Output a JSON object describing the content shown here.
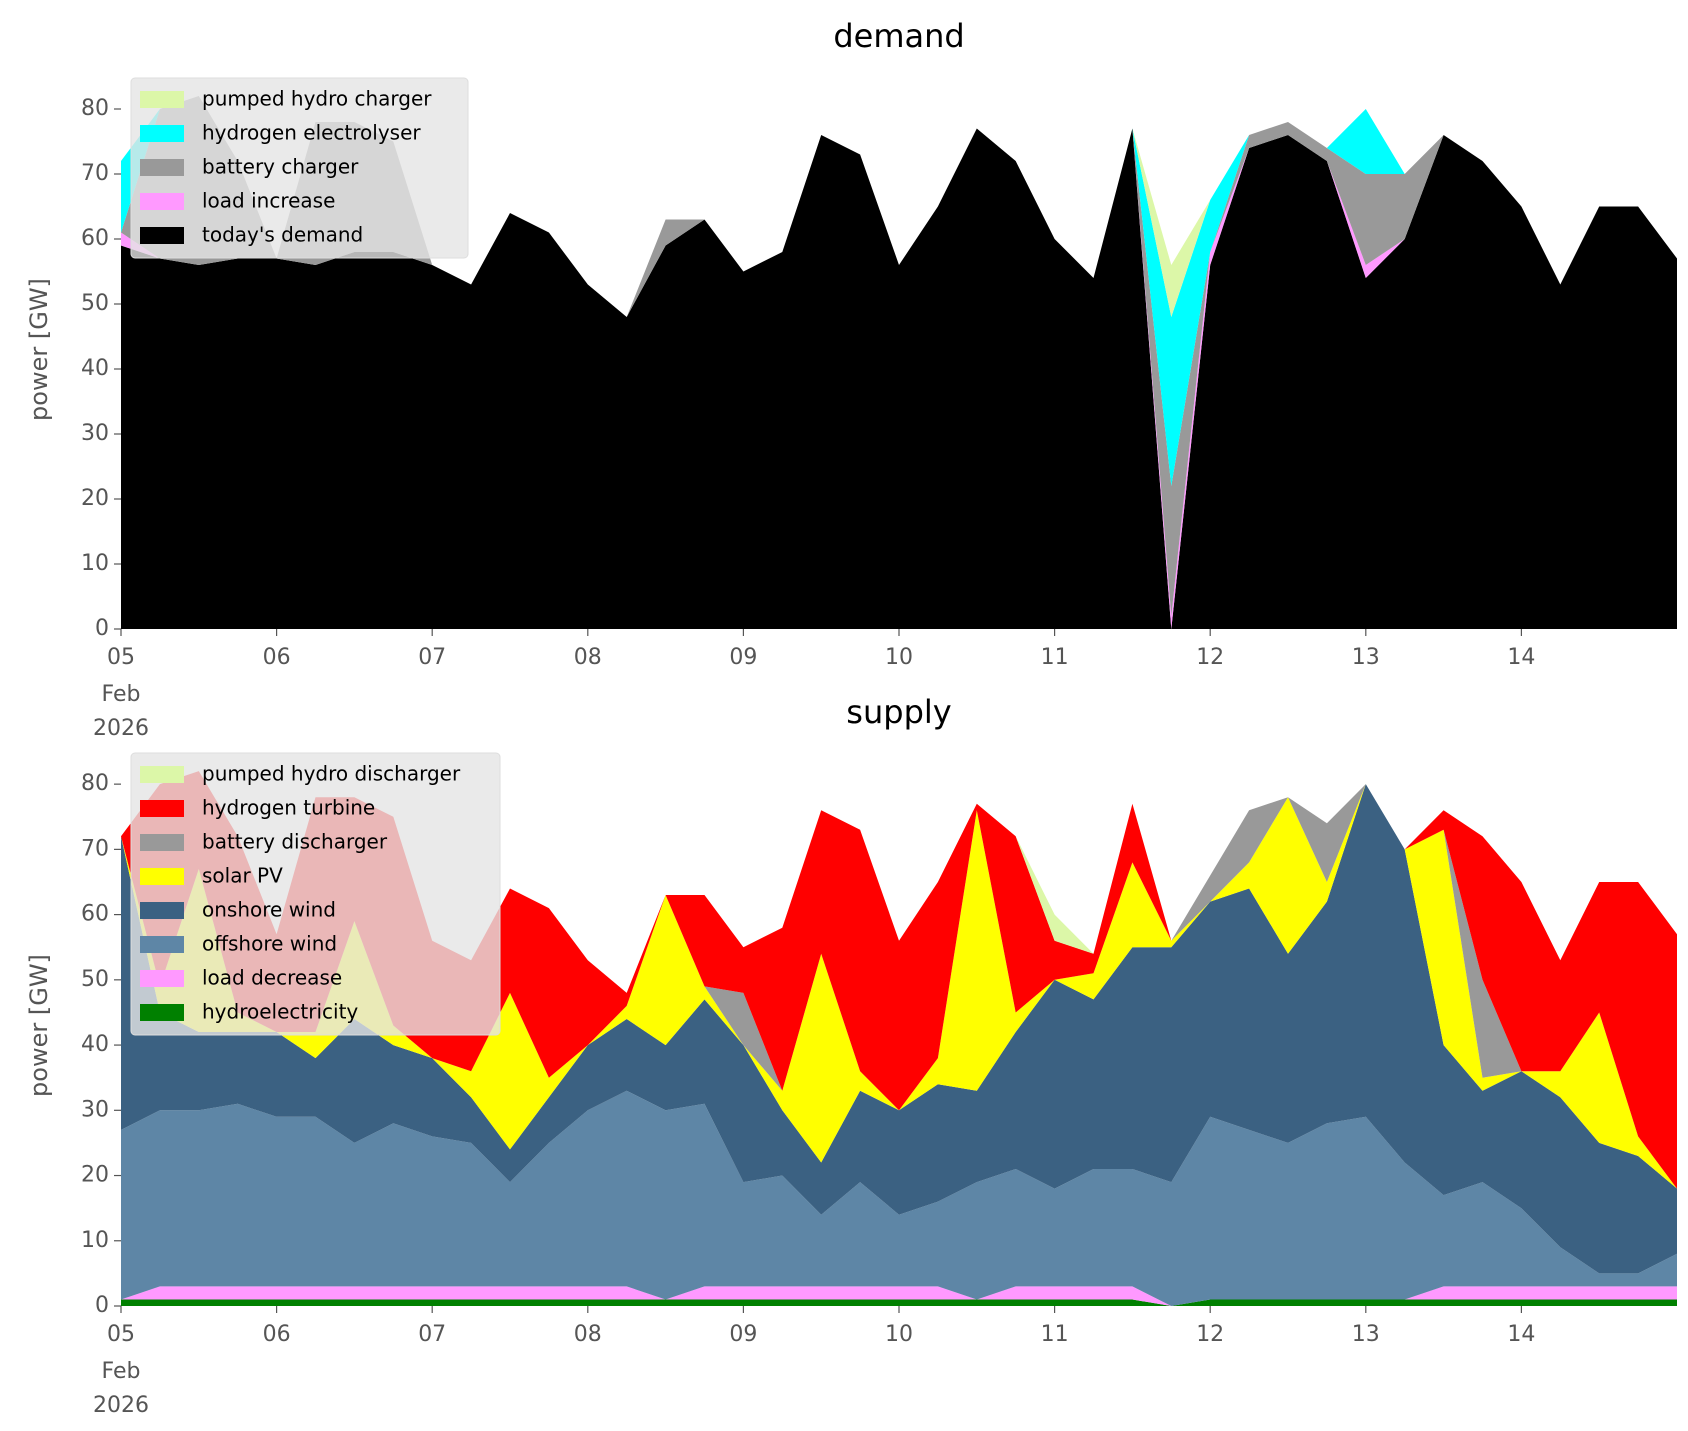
{
  "chart_data": [
    {
      "type": "stacked_area",
      "title": "demand",
      "ylabel": "power [GW]",
      "legend": "upper left",
      "x": [
        "2026-02-05T00:00",
        "2026-02-05T06:00",
        "2026-02-05T12:00",
        "2026-02-05T18:00",
        "2026-02-06T00:00",
        "2026-02-06T06:00",
        "2026-02-06T12:00",
        "2026-02-06T18:00",
        "2026-02-07T00:00",
        "2026-02-07T06:00",
        "2026-02-07T12:00",
        "2026-02-07T18:00",
        "2026-02-08T00:00",
        "2026-02-08T06:00",
        "2026-02-08T12:00",
        "2026-02-08T18:00",
        "2026-02-09T00:00",
        "2026-02-09T06:00",
        "2026-02-09T12:00",
        "2026-02-09T18:00",
        "2026-02-10T00:00",
        "2026-02-10T06:00",
        "2026-02-10T12:00",
        "2026-02-10T18:00",
        "2026-02-11T00:00",
        "2026-02-11T06:00",
        "2026-02-11T12:00",
        "2026-02-11T18:00",
        "2026-02-12T00:00",
        "2026-02-12T06:00",
        "2026-02-12T12:00",
        "2026-02-12T18:00",
        "2026-02-13T00:00",
        "2026-02-13T06:00",
        "2026-02-13T12:00",
        "2026-02-13T18:00",
        "2026-02-14T00:00",
        "2026-02-14T06:00",
        "2026-02-14T12:00",
        "2026-02-14T18:00",
        "2026-02-15T00:00"
      ],
      "xlim": [
        "2026-02-05T00:00",
        "2026-02-15T00:00"
      ],
      "xticks": [
        {
          "value": "2026-02-05T00:00",
          "label": "05"
        },
        {
          "value": "2026-02-06T00:00",
          "label": "06"
        },
        {
          "value": "2026-02-07T00:00",
          "label": "07"
        },
        {
          "value": "2026-02-08T00:00",
          "label": "08"
        },
        {
          "value": "2026-02-09T00:00",
          "label": "09"
        },
        {
          "value": "2026-02-10T00:00",
          "label": "10"
        },
        {
          "value": "2026-02-11T00:00",
          "label": "11"
        },
        {
          "value": "2026-02-12T00:00",
          "label": "12"
        },
        {
          "value": "2026-02-13T00:00",
          "label": "13"
        },
        {
          "value": "2026-02-14T00:00",
          "label": "14"
        }
      ],
      "xtick_sublabels": [
        "Feb",
        "2026"
      ],
      "ylim": [
        0,
        86
      ],
      "yticks": [
        0,
        10,
        20,
        30,
        40,
        50,
        60,
        70,
        80
      ],
      "series": [
        {
          "name": "pumped hydro charger",
          "color": "#dcf7a8",
          "values": [
            0,
            0,
            0,
            0,
            0,
            0,
            0,
            0,
            0,
            0,
            0,
            0,
            0,
            0,
            0,
            0,
            0,
            0,
            0,
            0,
            0,
            0,
            0,
            0,
            0,
            0,
            0,
            8,
            0,
            0,
            0,
            0,
            0,
            0,
            0,
            0,
            0,
            0,
            0,
            0,
            0
          ]
        },
        {
          "name": "hydrogen electrolyser",
          "color": "#00ffff",
          "values": [
            11,
            0,
            0,
            0,
            0,
            0,
            0,
            0,
            0,
            0,
            0,
            0,
            0,
            0,
            0,
            0,
            0,
            0,
            0,
            0,
            0,
            0,
            0,
            0,
            0,
            0,
            0,
            26,
            8,
            0,
            0,
            0,
            10,
            0,
            0,
            0,
            0,
            0,
            0,
            0,
            0
          ]
        },
        {
          "name": "battery charger",
          "color": "#999999",
          "values": [
            0,
            23,
            26,
            15,
            0,
            22,
            20,
            17,
            0,
            0,
            0,
            0,
            0,
            0,
            4,
            0,
            0,
            0,
            0,
            0,
            0,
            0,
            0,
            0,
            0,
            0,
            0,
            20,
            0,
            2,
            2,
            2,
            14,
            10,
            0,
            0,
            0,
            0,
            0,
            0,
            0
          ]
        },
        {
          "name": "load increase",
          "color": "#ff99ff",
          "values": [
            2,
            0,
            0,
            0,
            0,
            0,
            0,
            0,
            0,
            0,
            0,
            0,
            0,
            0,
            0,
            0,
            0,
            0,
            0,
            0,
            0,
            0,
            0,
            0,
            0,
            0,
            0,
            2,
            2,
            0,
            0,
            0,
            2,
            0,
            0,
            0,
            0,
            0,
            0,
            0,
            0
          ]
        },
        {
          "name": "today's demand",
          "color": "#000000",
          "values": [
            59,
            57,
            56,
            57,
            57,
            56,
            58,
            58,
            56,
            53,
            64,
            61,
            53,
            48,
            59,
            63,
            55,
            58,
            76,
            73,
            56,
            65,
            77,
            72,
            60,
            54,
            77,
            0,
            56,
            74,
            76,
            72,
            54,
            60,
            76,
            72,
            65,
            53,
            65,
            65,
            57
          ]
        }
      ]
    },
    {
      "type": "stacked_area",
      "title": "supply",
      "ylabel": "power [GW]",
      "legend": "upper left",
      "x": [
        "2026-02-05T00:00",
        "2026-02-05T06:00",
        "2026-02-05T12:00",
        "2026-02-05T18:00",
        "2026-02-06T00:00",
        "2026-02-06T06:00",
        "2026-02-06T12:00",
        "2026-02-06T18:00",
        "2026-02-07T00:00",
        "2026-02-07T06:00",
        "2026-02-07T12:00",
        "2026-02-07T18:00",
        "2026-02-08T00:00",
        "2026-02-08T06:00",
        "2026-02-08T12:00",
        "2026-02-08T18:00",
        "2026-02-09T00:00",
        "2026-02-09T06:00",
        "2026-02-09T12:00",
        "2026-02-09T18:00",
        "2026-02-10T00:00",
        "2026-02-10T06:00",
        "2026-02-10T12:00",
        "2026-02-10T18:00",
        "2026-02-11T00:00",
        "2026-02-11T06:00",
        "2026-02-11T12:00",
        "2026-02-11T18:00",
        "2026-02-12T00:00",
        "2026-02-12T06:00",
        "2026-02-12T12:00",
        "2026-02-12T18:00",
        "2026-02-13T00:00",
        "2026-02-13T06:00",
        "2026-02-13T12:00",
        "2026-02-13T18:00",
        "2026-02-14T00:00",
        "2026-02-14T06:00",
        "2026-02-14T12:00",
        "2026-02-14T18:00",
        "2026-02-15T00:00"
      ],
      "xlim": [
        "2026-02-05T00:00",
        "2026-02-15T00:00"
      ],
      "xticks": [
        {
          "value": "2026-02-05T00:00",
          "label": "05"
        },
        {
          "value": "2026-02-06T00:00",
          "label": "06"
        },
        {
          "value": "2026-02-07T00:00",
          "label": "07"
        },
        {
          "value": "2026-02-08T00:00",
          "label": "08"
        },
        {
          "value": "2026-02-09T00:00",
          "label": "09"
        },
        {
          "value": "2026-02-10T00:00",
          "label": "10"
        },
        {
          "value": "2026-02-11T00:00",
          "label": "11"
        },
        {
          "value": "2026-02-12T00:00",
          "label": "12"
        },
        {
          "value": "2026-02-13T00:00",
          "label": "13"
        },
        {
          "value": "2026-02-14T00:00",
          "label": "14"
        }
      ],
      "xtick_sublabels": [
        "Feb",
        "2026"
      ],
      "ylim": [
        0,
        86
      ],
      "yticks": [
        0,
        10,
        20,
        30,
        40,
        50,
        60,
        70,
        80
      ],
      "series": [
        {
          "name": "pumped hydro discharger",
          "color": "#dcf7a8",
          "values": [
            0,
            0,
            0,
            0,
            0,
            0,
            0,
            0,
            0,
            0,
            0,
            0,
            0,
            0,
            0,
            0,
            0,
            0,
            0,
            0,
            0,
            0,
            0,
            0,
            4,
            0,
            0,
            0,
            0,
            0,
            0,
            0,
            0,
            0,
            0,
            0,
            0,
            0,
            0,
            0,
            0
          ]
        },
        {
          "name": "hydrogen turbine",
          "color": "#ff0000",
          "values": [
            0,
            31,
            15,
            27,
            15,
            36,
            19,
            32,
            18,
            17,
            16,
            26,
            13,
            2,
            0,
            14,
            7,
            25,
            22,
            37,
            26,
            27,
            1,
            27,
            6,
            3,
            9,
            0,
            0,
            0,
            0,
            0,
            0,
            0,
            3,
            22,
            29,
            17,
            20,
            39,
            39
          ]
        },
        {
          "name": "battery discharger",
          "color": "#999999",
          "values": [
            0,
            0,
            0,
            0,
            0,
            0,
            0,
            0,
            0,
            0,
            0,
            0,
            0,
            0,
            0,
            0,
            8,
            0,
            0,
            0,
            0,
            0,
            0,
            0,
            0,
            0,
            0,
            0,
            4,
            8,
            0,
            9,
            0,
            0,
            0,
            15,
            0,
            0,
            0,
            0,
            0
          ]
        },
        {
          "name": "solar PV",
          "color": "#ffff00",
          "values": [
            0,
            4,
            25,
            3,
            0,
            4,
            15,
            3,
            0,
            4,
            24,
            3,
            0,
            2,
            23,
            2,
            0,
            3,
            32,
            3,
            0,
            4,
            43,
            3,
            0,
            4,
            13,
            1,
            0,
            4,
            24,
            3,
            0,
            0,
            33,
            2,
            0,
            4,
            20,
            3,
            0
          ]
        },
        {
          "name": "onshore wind",
          "color": "#3b6182",
          "values": [
            45,
            15,
            12,
            11,
            13,
            9,
            19,
            12,
            12,
            7,
            5,
            7,
            10,
            11,
            10,
            16,
            21,
            10,
            8,
            14,
            16,
            18,
            14,
            21,
            32,
            26,
            34,
            36,
            33,
            37,
            29,
            34,
            51,
            48,
            23,
            14,
            21,
            23,
            20,
            18,
            10
          ]
        },
        {
          "name": "offshore wind",
          "color": "#5e86a6",
          "values": [
            26,
            27,
            27,
            28,
            26,
            26,
            22,
            25,
            23,
            22,
            16,
            22,
            27,
            30,
            29,
            28,
            16,
            17,
            11,
            16,
            11,
            13,
            18,
            18,
            15,
            18,
            18,
            19,
            28,
            26,
            24,
            27,
            28,
            21,
            14,
            16,
            12,
            6,
            2,
            2,
            5
          ]
        },
        {
          "name": "load decrease",
          "color": "#ff99ff",
          "values": [
            0,
            2,
            2,
            2,
            2,
            2,
            2,
            2,
            2,
            2,
            2,
            2,
            2,
            2,
            0,
            2,
            2,
            2,
            2,
            2,
            2,
            2,
            0,
            2,
            2,
            2,
            2,
            0,
            0,
            0,
            0,
            0,
            0,
            0,
            2,
            2,
            2,
            2,
            2,
            2,
            2
          ]
        },
        {
          "name": "hydroelectricity",
          "color": "#008000",
          "values": [
            1,
            1,
            1,
            1,
            1,
            1,
            1,
            1,
            1,
            1,
            1,
            1,
            1,
            1,
            1,
            1,
            1,
            1,
            1,
            1,
            1,
            1,
            1,
            1,
            1,
            1,
            1,
            0,
            1,
            1,
            1,
            1,
            1,
            1,
            1,
            1,
            1,
            1,
            1,
            1,
            1
          ]
        }
      ]
    }
  ]
}
